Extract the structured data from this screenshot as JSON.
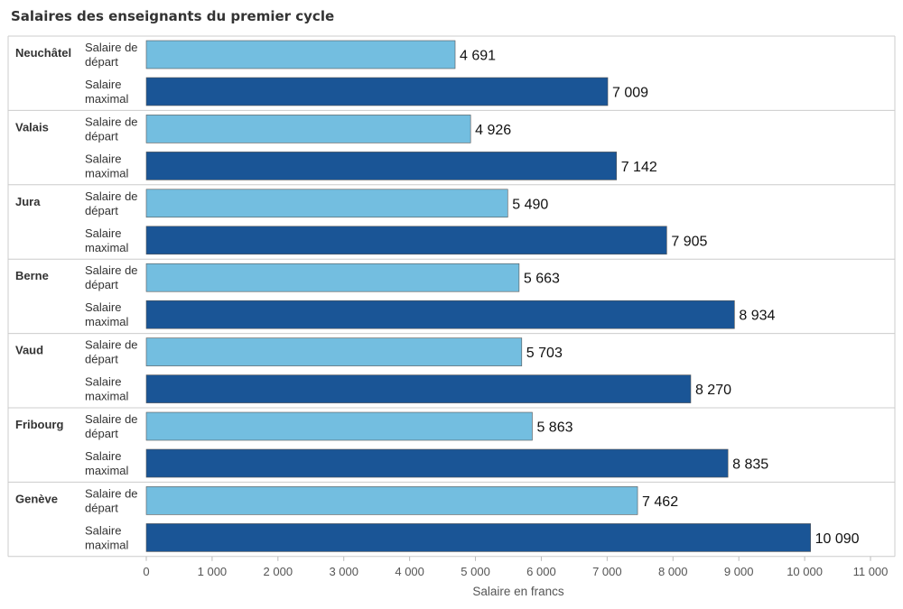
{
  "chart_data": {
    "type": "bar",
    "orientation": "horizontal",
    "title": "Salaires des enseignants du premier cycle",
    "xlabel": "Salaire en francs",
    "ylabel": "",
    "xlim": [
      0,
      11000
    ],
    "grid": false,
    "ticks": [
      {
        "value": 0,
        "label": "0"
      },
      {
        "value": 1000,
        "label": "1 000"
      },
      {
        "value": 2000,
        "label": "2 000"
      },
      {
        "value": 3000,
        "label": "3 000"
      },
      {
        "value": 4000,
        "label": "4 000"
      },
      {
        "value": 5000,
        "label": "5 000"
      },
      {
        "value": 6000,
        "label": "6 000"
      },
      {
        "value": 7000,
        "label": "7 000"
      },
      {
        "value": 8000,
        "label": "8 000"
      },
      {
        "value": 9000,
        "label": "9 000"
      },
      {
        "value": 10000,
        "label": "10 000"
      },
      {
        "value": 11000,
        "label": "11 000"
      }
    ],
    "series": [
      {
        "name": "Salaire de départ",
        "label_lines": [
          "Salaire de",
          "départ"
        ],
        "color": "#73bee0"
      },
      {
        "name": "Salaire maximal",
        "label_lines": [
          "Salaire",
          "maximal"
        ],
        "color": "#1a5596"
      }
    ],
    "categories": [
      {
        "name": "Neuchâtel",
        "values": [
          4691,
          7009
        ],
        "labels": [
          "4 691",
          "7 009"
        ]
      },
      {
        "name": "Valais",
        "values": [
          4926,
          7142
        ],
        "labels": [
          "4 926",
          "7 142"
        ]
      },
      {
        "name": "Jura",
        "values": [
          5490,
          7905
        ],
        "labels": [
          "5 490",
          "7 905"
        ]
      },
      {
        "name": "Berne",
        "values": [
          5663,
          8934
        ],
        "labels": [
          "5 663",
          "8 934"
        ]
      },
      {
        "name": "Vaud",
        "values": [
          5703,
          8270
        ],
        "labels": [
          "5 703",
          "8 270"
        ]
      },
      {
        "name": "Fribourg",
        "values": [
          5863,
          8835
        ],
        "labels": [
          "5 863",
          "8 835"
        ]
      },
      {
        "name": "Genève",
        "values": [
          7462,
          10090
        ],
        "labels": [
          "7 462",
          "10 090"
        ]
      }
    ]
  }
}
